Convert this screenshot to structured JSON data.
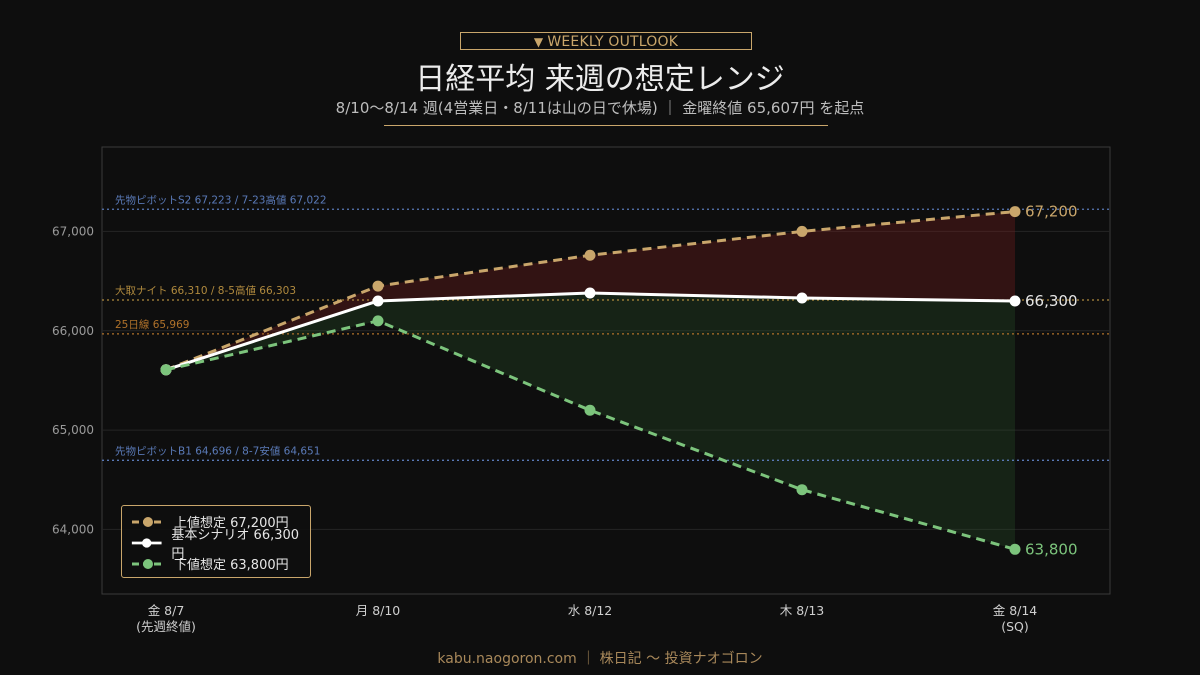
{
  "header": {
    "badge_icon": "▼",
    "badge_text": "WEEKLY OUTLOOK",
    "title": "日経平均 来週の想定レンジ",
    "subtitle": "8/10〜8/14 週(4営業日・8/11は山の日で休場) ｜ 金曜終値 65,607円 を起点"
  },
  "footer": {
    "text": "kabu.naogoron.com ｜ 株日記 〜 投資ナオゴロン"
  },
  "chart_data": {
    "type": "line",
    "categories": [
      [
        "金 8/7",
        "(先週終値)"
      ],
      [
        "月 8/10"
      ],
      [
        "水 8/12"
      ],
      [
        "木 8/13"
      ],
      [
        "金 8/14",
        "(SQ)"
      ]
    ],
    "ylim": [
      63350,
      67850
    ],
    "yticks": [
      64000,
      65000,
      66000,
      67000
    ],
    "ytick_labels": [
      "64,000",
      "65,000",
      "66,000",
      "67,000"
    ],
    "grid": true,
    "series": [
      {
        "name": "上値想定 67,200円",
        "key": "upper",
        "color": "#c9a66b",
        "dashed": true,
        "values": [
          65607,
          66450,
          66760,
          67000,
          67200
        ],
        "end_label": "67,200"
      },
      {
        "name": "基本シナリオ 66,300円",
        "key": "base",
        "color": "#ffffff",
        "dashed": false,
        "values": [
          65607,
          66300,
          66380,
          66330,
          66300
        ],
        "end_label": "66,300"
      },
      {
        "name": "下値想定 63,800円",
        "key": "lower",
        "color": "#7cc47c",
        "dashed": true,
        "values": [
          65607,
          66100,
          65200,
          64400,
          63800
        ],
        "end_label": "63,800"
      }
    ],
    "reference_lines": [
      {
        "value": 67223,
        "label": "先物ピボットS2 67,223 / 7-23高値 67,022",
        "color": "#5a7ab8"
      },
      {
        "value": 66310,
        "label": "大取ナイト 66,310 / 8-5高値 66,303",
        "color": "#b08a3e"
      },
      {
        "value": 65969,
        "label": "25日線 65,969",
        "color": "#b0722a"
      },
      {
        "value": 64696,
        "label": "先物ピボットB1 64,696 / 8-7安値 64,651",
        "color": "#5a7ab8"
      }
    ],
    "legend_position": "bottom-left"
  }
}
